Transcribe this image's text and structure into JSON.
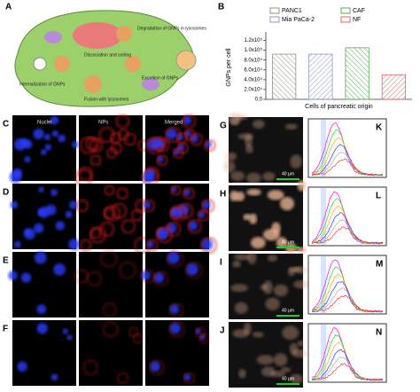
{
  "panel_a": {
    "label": "A",
    "texts": [
      "Degradation of GNPs in lysosomes",
      "Dissociation and sorting",
      "Excretion of GNPs",
      "Internalization of GNPs",
      "Fusion with lysosomes"
    ]
  },
  "chart_data": {
    "type": "bar",
    "panel_label": "B",
    "y_label": "GNPs per cell",
    "x_label": "Cells of pancreatic origin",
    "ylim": [
      0,
      130000
    ],
    "yticks": [
      {
        "value": 0,
        "label": "0.0"
      },
      {
        "value": 20000,
        "label": "2.0x10⁴"
      },
      {
        "value": 40000,
        "label": "4.0x10⁴"
      },
      {
        "value": 60000,
        "label": "6.0x10⁴"
      },
      {
        "value": 80000,
        "label": "8.0x10⁴"
      },
      {
        "value": 100000,
        "label": "1.0x10⁵"
      },
      {
        "value": 120000,
        "label": "1.2x10⁵"
      }
    ],
    "series": [
      {
        "name": "PANC1",
        "color": "#8a9a7a",
        "values": [
          92000
        ]
      },
      {
        "name": "Mia PaCa-2",
        "color": "#8899cc",
        "values": [
          92000
        ]
      },
      {
        "name": "CAF",
        "color": "#55aa55",
        "values": [
          105000
        ]
      },
      {
        "name": "NF",
        "color": "#dd6666",
        "values": [
          50000
        ]
      }
    ]
  },
  "panels_c_f": {
    "headers": [
      "Nuclei",
      "NPs",
      "Merged"
    ],
    "labels": [
      "C",
      "D",
      "E",
      "F"
    ]
  },
  "panels_g_j": {
    "labels": [
      "G",
      "H",
      "I",
      "J"
    ],
    "scale": "40 μm"
  },
  "panels_k_n": {
    "labels": [
      "K",
      "L",
      "M",
      "N"
    ]
  }
}
